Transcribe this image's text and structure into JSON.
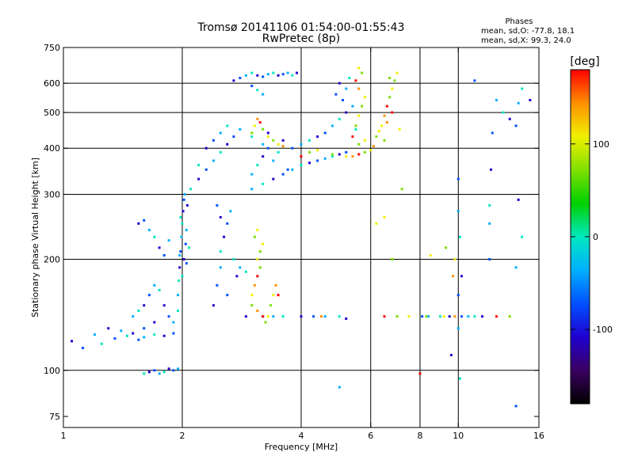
{
  "chart_data": {
    "type": "scatter",
    "title": "Tromsø 20141106 01:54:00-01:55:43",
    "subtitle": "RwPretec (8p)",
    "xlabel": "Frequency [MHz]",
    "ylabel": "Stationary phase Virtual Height [km]",
    "x_scale": "log",
    "y_scale": "log",
    "xlim": [
      1,
      16
    ],
    "ylim": [
      70,
      750
    ],
    "x_ticks": [
      {
        "value": 1,
        "label": "1"
      },
      {
        "value": 2,
        "label": "2"
      },
      {
        "value": 4,
        "label": "4"
      },
      {
        "value": 6,
        "label": "6"
      },
      {
        "value": 8,
        "label": "8"
      },
      {
        "value": 10,
        "label": "10"
      },
      {
        "value": 16,
        "label": "16"
      }
    ],
    "y_ticks": [
      {
        "value": 75,
        "label": "75"
      },
      {
        "value": 100,
        "label": "100"
      },
      {
        "value": 200,
        "label": "200"
      },
      {
        "value": 300,
        "label": "300"
      },
      {
        "value": 400,
        "label": "400"
      },
      {
        "value": 500,
        "label": "500"
      },
      {
        "value": 600,
        "label": "600"
      },
      {
        "value": 750,
        "label": "750"
      }
    ],
    "grid_x": [
      2,
      4,
      6,
      8,
      10
    ],
    "grid_y": [
      100,
      200,
      300,
      400,
      500,
      600
    ],
    "stats": {
      "heading": "Phases",
      "line_o": "mean, sd,O: -77.8, 18.1",
      "line_x": "mean, sd,X:  99.3, 24.0"
    },
    "colorbar": {
      "unit_label": "[deg]",
      "range": [
        -180,
        180
      ],
      "ticks": [
        {
          "value": 100,
          "label": "100"
        },
        {
          "value": 0,
          "label": "0"
        },
        {
          "value": -100,
          "label": "-100"
        }
      ],
      "colors": [
        "#000000",
        "#3a0060",
        "#2000d0",
        "#0050ff",
        "#00b0ff",
        "#00e8c0",
        "#00d000",
        "#80e000",
        "#f0f000",
        "#ff9000",
        "#ff0000"
      ]
    },
    "series": [
      {
        "points": [
          [
            1.05,
            120
          ],
          [
            1.12,
            115
          ],
          [
            1.2,
            125
          ],
          [
            1.25,
            118
          ],
          [
            1.3,
            130
          ],
          [
            1.35,
            122
          ],
          [
            1.4,
            128
          ],
          [
            1.45,
            124
          ],
          [
            1.5,
            126
          ],
          [
            1.55,
            121
          ],
          [
            1.6,
            123
          ],
          [
            1.7,
            125
          ],
          [
            1.8,
            124
          ],
          [
            1.9,
            126
          ],
          [
            1.5,
            140
          ],
          [
            1.55,
            145
          ],
          [
            1.6,
            150
          ],
          [
            1.65,
            160
          ],
          [
            1.7,
            170
          ],
          [
            1.75,
            165
          ],
          [
            1.8,
            150
          ],
          [
            1.85,
            140
          ],
          [
            1.9,
            135
          ],
          [
            1.95,
            145
          ],
          [
            1.7,
            135
          ],
          [
            1.6,
            130
          ],
          [
            1.95,
            160
          ],
          [
            1.96,
            175
          ],
          [
            1.97,
            190
          ],
          [
            1.98,
            210
          ],
          [
            1.99,
            230
          ],
          [
            2.0,
            250
          ],
          [
            2.01,
            270
          ],
          [
            2.02,
            290
          ],
          [
            2.03,
            300
          ],
          [
            2.0,
            180
          ],
          [
            2.02,
            200
          ],
          [
            2.04,
            220
          ],
          [
            2.05,
            240
          ],
          [
            1.98,
            260
          ],
          [
            2.06,
            280
          ],
          [
            2.05,
            195
          ],
          [
            1.97,
            205
          ],
          [
            2.08,
            215
          ],
          [
            1.55,
            250
          ],
          [
            1.6,
            255
          ],
          [
            1.65,
            240
          ],
          [
            1.7,
            230
          ],
          [
            1.75,
            215
          ],
          [
            1.8,
            205
          ],
          [
            1.85,
            225
          ],
          [
            1.6,
            98
          ],
          [
            1.65,
            99
          ],
          [
            1.7,
            100
          ],
          [
            1.75,
            98
          ],
          [
            1.8,
            99
          ],
          [
            1.85,
            101
          ],
          [
            1.9,
            100
          ],
          [
            1.95,
            101
          ],
          [
            2.1,
            310
          ],
          [
            2.2,
            330
          ],
          [
            2.3,
            350
          ],
          [
            2.4,
            370
          ],
          [
            2.5,
            390
          ],
          [
            2.6,
            410
          ],
          [
            2.7,
            430
          ],
          [
            2.8,
            450
          ],
          [
            2.2,
            360
          ],
          [
            2.3,
            400
          ],
          [
            2.4,
            420
          ],
          [
            2.5,
            440
          ],
          [
            2.6,
            460
          ],
          [
            2.4,
            150
          ],
          [
            2.45,
            170
          ],
          [
            2.5,
            190
          ],
          [
            2.5,
            210
          ],
          [
            2.55,
            230
          ],
          [
            2.6,
            250
          ],
          [
            2.65,
            270
          ],
          [
            2.7,
            200
          ],
          [
            2.75,
            180
          ],
          [
            2.6,
            160
          ],
          [
            2.8,
            190
          ],
          [
            2.9,
            185
          ],
          [
            2.5,
            260
          ],
          [
            2.45,
            280
          ],
          [
            3.0,
            310
          ],
          [
            3.2,
            320
          ],
          [
            3.4,
            330
          ],
          [
            3.6,
            340
          ],
          [
            3.8,
            350
          ],
          [
            4.0,
            360
          ],
          [
            4.2,
            365
          ],
          [
            4.4,
            370
          ],
          [
            4.6,
            375
          ],
          [
            4.8,
            380
          ],
          [
            5.0,
            385
          ],
          [
            5.2,
            390
          ],
          [
            3.0,
            340
          ],
          [
            3.1,
            360
          ],
          [
            3.2,
            380
          ],
          [
            3.3,
            400
          ],
          [
            3.4,
            370
          ],
          [
            3.5,
            390
          ],
          [
            3.6,
            420
          ],
          [
            3.7,
            350
          ],
          [
            3.2,
            410
          ],
          [
            3.0,
            430
          ],
          [
            3.3,
            440
          ],
          [
            3.8,
            400
          ],
          [
            4.0,
            410
          ],
          [
            4.2,
            420
          ],
          [
            4.4,
            430
          ],
          [
            4.6,
            440
          ],
          [
            4.8,
            460
          ],
          [
            5.0,
            480
          ],
          [
            5.2,
            500
          ],
          [
            5.1,
            540
          ],
          [
            5.2,
            580
          ],
          [
            5.3,
            620
          ],
          [
            5.0,
            600
          ],
          [
            4.9,
            560
          ],
          [
            5.4,
            520
          ],
          [
            5.5,
            450
          ],
          [
            2.7,
            610
          ],
          [
            2.8,
            620
          ],
          [
            2.9,
            630
          ],
          [
            3.0,
            640
          ],
          [
            3.1,
            630
          ],
          [
            3.2,
            625
          ],
          [
            3.3,
            635
          ],
          [
            3.4,
            640
          ],
          [
            3.5,
            630
          ],
          [
            3.6,
            635
          ],
          [
            3.7,
            640
          ],
          [
            3.8,
            630
          ],
          [
            3.9,
            640
          ],
          [
            3.0,
            590
          ],
          [
            3.2,
            560
          ],
          [
            3.1,
            575
          ],
          [
            2.9,
            140
          ],
          [
            3.2,
            140
          ],
          [
            3.4,
            140
          ],
          [
            3.6,
            140
          ],
          [
            4.0,
            140
          ],
          [
            4.3,
            140
          ],
          [
            4.6,
            140
          ],
          [
            5.0,
            140
          ],
          [
            5.2,
            138
          ],
          [
            8.1,
            140
          ],
          [
            8.4,
            140
          ],
          [
            9.0,
            140
          ],
          [
            9.5,
            140
          ],
          [
            10.2,
            140
          ],
          [
            10.6,
            140
          ],
          [
            11.0,
            140
          ],
          [
            11.5,
            140
          ],
          [
            10.0,
            330
          ],
          [
            10.0,
            270
          ],
          [
            10.1,
            230
          ],
          [
            10.2,
            180
          ],
          [
            10.0,
            160
          ],
          [
            10.0,
            130
          ],
          [
            10.1,
            95
          ],
          [
            9.6,
            110
          ],
          [
            12.0,
            200
          ],
          [
            12.0,
            250
          ],
          [
            12.0,
            280
          ],
          [
            12.1,
            350
          ],
          [
            12.2,
            440
          ],
          [
            14.0,
            190
          ],
          [
            14.5,
            230
          ],
          [
            14.2,
            290
          ],
          [
            14.0,
            460
          ],
          [
            14.2,
            530
          ],
          [
            14.5,
            580
          ],
          [
            15.2,
            540
          ],
          [
            11.0,
            610
          ],
          [
            12.5,
            540
          ],
          [
            13.0,
            500
          ],
          [
            13.5,
            480
          ],
          [
            14.0,
            80
          ],
          [
            5.0,
            90
          ]
        ]
      },
      {
        "points": [
          [
            3.0,
            150
          ],
          [
            3.0,
            160
          ],
          [
            3.05,
            170
          ],
          [
            3.1,
            180
          ],
          [
            3.15,
            190
          ],
          [
            3.1,
            200
          ],
          [
            3.15,
            210
          ],
          [
            3.2,
            220
          ],
          [
            3.1,
            145
          ],
          [
            3.2,
            140
          ],
          [
            3.25,
            135
          ],
          [
            3.3,
            140
          ],
          [
            3.35,
            150
          ],
          [
            3.4,
            160
          ],
          [
            3.45,
            170
          ],
          [
            3.5,
            160
          ],
          [
            3.05,
            230
          ],
          [
            3.1,
            240
          ],
          [
            3.0,
            440
          ],
          [
            3.05,
            460
          ],
          [
            3.1,
            480
          ],
          [
            3.15,
            470
          ],
          [
            3.2,
            450
          ],
          [
            3.3,
            430
          ],
          [
            3.4,
            420
          ],
          [
            3.5,
            410
          ],
          [
            3.6,
            405
          ],
          [
            4.0,
            380
          ],
          [
            4.2,
            390
          ],
          [
            4.4,
            395
          ],
          [
            4.8,
            385
          ],
          [
            5.2,
            380
          ],
          [
            5.4,
            380
          ],
          [
            5.6,
            385
          ],
          [
            5.8,
            390
          ],
          [
            6.0,
            395
          ],
          [
            5.6,
            410
          ],
          [
            5.8,
            420
          ],
          [
            6.1,
            405
          ],
          [
            5.4,
            430
          ],
          [
            5.5,
            460
          ],
          [
            5.6,
            490
          ],
          [
            5.7,
            520
          ],
          [
            5.8,
            550
          ],
          [
            5.6,
            580
          ],
          [
            5.5,
            610
          ],
          [
            5.7,
            640
          ],
          [
            5.6,
            660
          ],
          [
            6.2,
            430
          ],
          [
            6.4,
            460
          ],
          [
            6.5,
            490
          ],
          [
            6.6,
            520
          ],
          [
            6.7,
            550
          ],
          [
            6.8,
            580
          ],
          [
            6.9,
            610
          ],
          [
            7.0,
            640
          ],
          [
            6.6,
            470
          ],
          [
            6.8,
            500
          ],
          [
            6.7,
            620
          ],
          [
            7.1,
            450
          ],
          [
            6.5,
            420
          ],
          [
            6.3,
            445
          ],
          [
            4.5,
            140
          ],
          [
            6.5,
            140
          ],
          [
            7.0,
            140
          ],
          [
            7.5,
            140
          ],
          [
            8.3,
            140
          ],
          [
            9.2,
            140
          ],
          [
            9.8,
            140
          ],
          [
            12.5,
            140
          ],
          [
            13.5,
            140
          ],
          [
            8.5,
            205
          ],
          [
            9.3,
            215
          ],
          [
            9.8,
            200
          ],
          [
            9.7,
            180
          ],
          [
            8.0,
            98
          ],
          [
            6.8,
            200
          ],
          [
            6.5,
            260
          ],
          [
            7.2,
            310
          ],
          [
            6.2,
            250
          ]
        ]
      }
    ]
  }
}
